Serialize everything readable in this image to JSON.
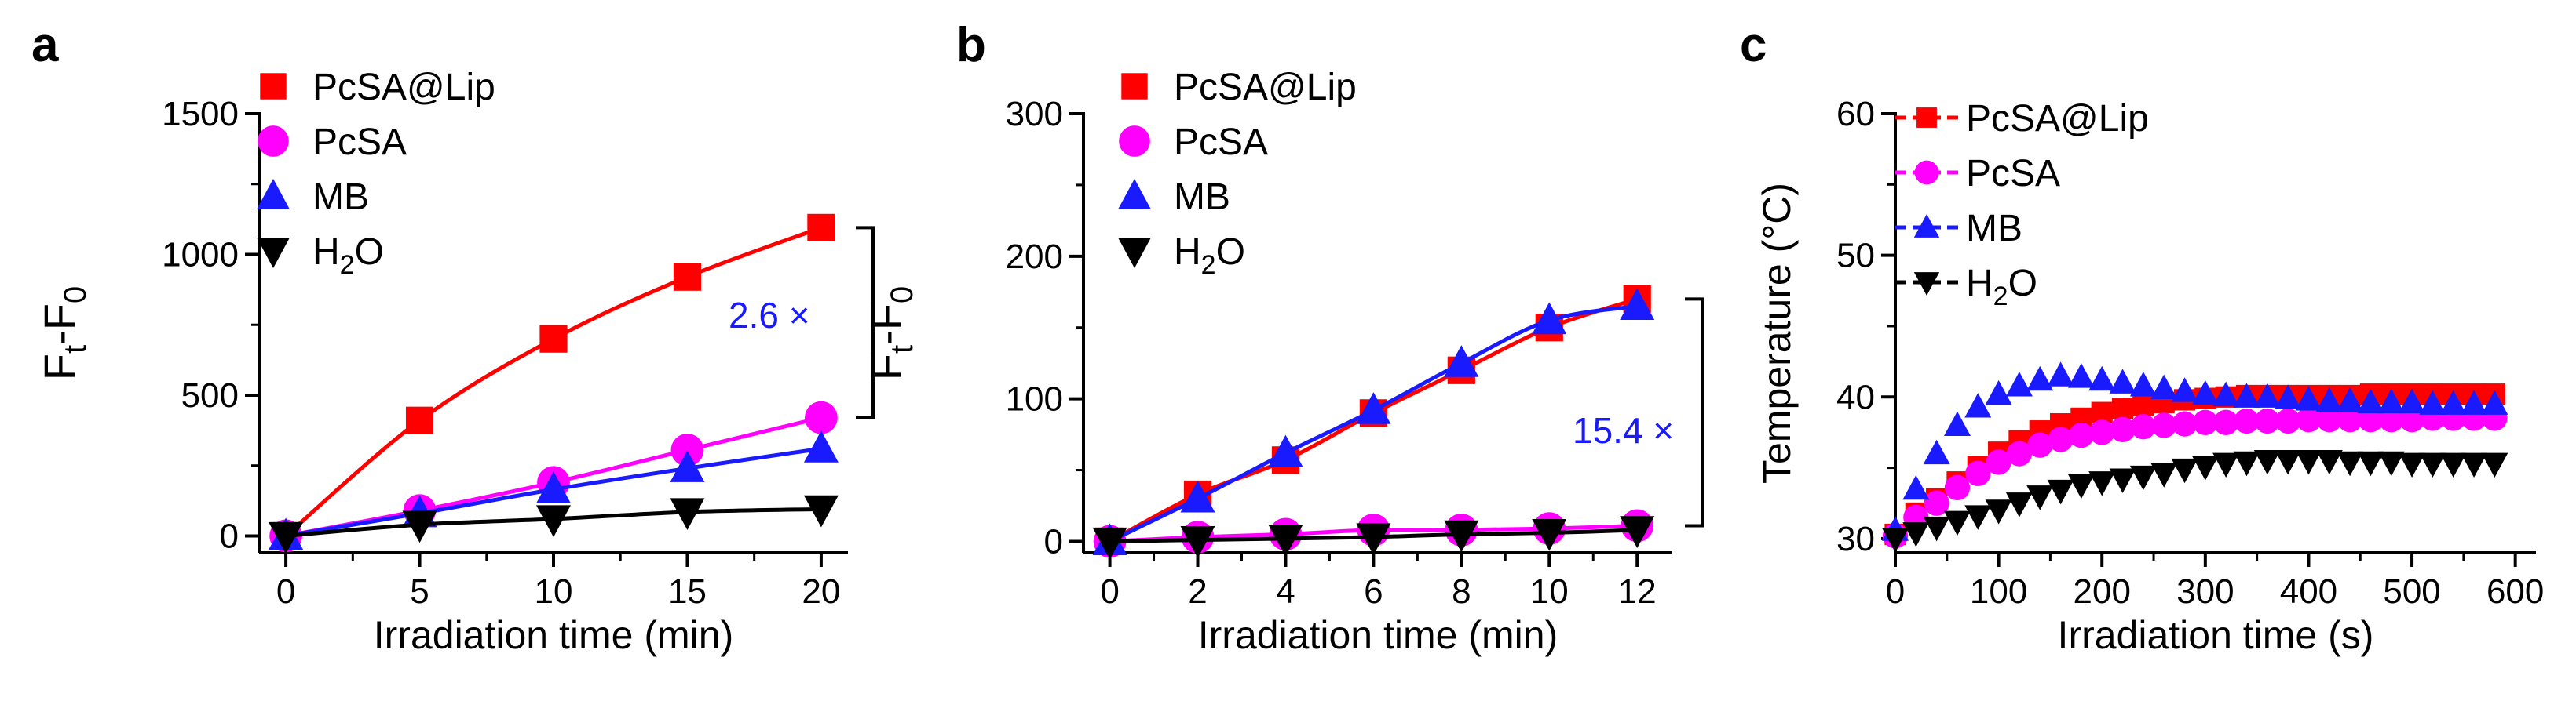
{
  "colors": {
    "PcSA@Lip": "#ff0000",
    "PcSA": "#ff00ff",
    "MB": "#1a1aff",
    "H2O": "#000000",
    "annotation": "#1a1aff"
  },
  "chart_data": [
    {
      "panel": "a",
      "type": "line",
      "xlabel": "Irradiation time (min)",
      "ylabel": "Ft-F0",
      "xlim": [
        -1,
        21
      ],
      "ylim": [
        -60,
        1500
      ],
      "xticks": [
        0,
        5,
        10,
        15,
        20
      ],
      "yticks": [
        0,
        500,
        1000,
        1500
      ],
      "x": [
        0,
        5,
        10,
        15,
        20
      ],
      "series": [
        {
          "name": "PcSA@Lip",
          "label_main": "PcSA@Lip",
          "label_sub": "",
          "label_tail": "",
          "marker": "square",
          "values": [
            0,
            410,
            700,
            920,
            1095
          ]
        },
        {
          "name": "PcSA",
          "label_main": "PcSA",
          "label_sub": "",
          "label_tail": "",
          "marker": "circle",
          "values": [
            0,
            90,
            190,
            305,
            420
          ]
        },
        {
          "name": "MB",
          "label_main": "MB",
          "label_sub": "",
          "label_tail": "",
          "marker": "triangle-up",
          "values": [
            0,
            80,
            165,
            240,
            310
          ]
        },
        {
          "name": "H2O",
          "label_main": "H",
          "label_sub": "2",
          "label_tail": "O",
          "marker": "triangle-down",
          "values": [
            0,
            40,
            60,
            85,
            95
          ]
        }
      ],
      "annotation": {
        "text": "2.6 ×",
        "from_value": 1095,
        "to_value": 420
      }
    },
    {
      "panel": "b",
      "type": "line",
      "xlabel": "Irradiation time (min)",
      "ylabel": "Ft-F0",
      "xlim": [
        -0.6,
        12.8
      ],
      "ylim": [
        -8,
        300
      ],
      "xticks": [
        0,
        2,
        4,
        6,
        8,
        10,
        12
      ],
      "yticks": [
        0,
        100,
        200,
        300
      ],
      "x": [
        0,
        2,
        4,
        6,
        8,
        10,
        12
      ],
      "series": [
        {
          "name": "PcSA@Lip",
          "label_main": "PcSA@Lip",
          "label_sub": "",
          "label_tail": "",
          "marker": "square",
          "values": [
            0,
            33,
            57,
            90,
            120,
            150,
            170
          ]
        },
        {
          "name": "PcSA",
          "label_main": "PcSA",
          "label_sub": "",
          "label_tail": "",
          "marker": "circle",
          "values": [
            0,
            3,
            5,
            8,
            8,
            9,
            11
          ]
        },
        {
          "name": "MB",
          "label_main": "MB",
          "label_sub": "",
          "label_tail": "",
          "marker": "triangle-up",
          "values": [
            0,
            30,
            62,
            92,
            125,
            155,
            165
          ]
        },
        {
          "name": "H2O",
          "label_main": "H",
          "label_sub": "2",
          "label_tail": "O",
          "marker": "triangle-down",
          "values": [
            0,
            1,
            2,
            3,
            5,
            6,
            8
          ]
        }
      ],
      "annotation": {
        "text": "15.4 ×",
        "from_value": 170,
        "to_value": 11
      }
    },
    {
      "panel": "c",
      "type": "scatter",
      "xlabel": "Irradiation time (s)",
      "ylabel": "Temperature (°C)",
      "xlim": [
        0,
        620
      ],
      "ylim": [
        29,
        60
      ],
      "xticks": [
        0,
        100,
        200,
        300,
        400,
        500,
        600
      ],
      "yticks": [
        30,
        40,
        50,
        60
      ],
      "x": [
        0,
        20,
        40,
        60,
        80,
        100,
        120,
        140,
        160,
        180,
        200,
        220,
        240,
        260,
        280,
        300,
        320,
        340,
        360,
        380,
        400,
        420,
        440,
        460,
        480,
        500,
        520,
        540,
        560,
        580
      ],
      "series": [
        {
          "name": "PcSA@Lip",
          "label_main": "PcSA@Lip",
          "label_sub": "",
          "label_tail": "",
          "marker": "square",
          "values": [
            30.3,
            31.8,
            32.8,
            34.0,
            35.1,
            36.1,
            36.9,
            37.6,
            38.1,
            38.5,
            38.9,
            39.2,
            39.4,
            39.6,
            39.8,
            39.9,
            40.0,
            40.1,
            40.1,
            40.1,
            40.1,
            40.1,
            40.1,
            40.2,
            40.2,
            40.2,
            40.2,
            40.2,
            40.2,
            40.2
          ]
        },
        {
          "name": "PcSA",
          "label_main": "PcSA",
          "label_sub": "",
          "label_tail": "",
          "marker": "circle",
          "values": [
            30.2,
            31.5,
            32.5,
            33.6,
            34.6,
            35.4,
            36.0,
            36.6,
            37.0,
            37.3,
            37.5,
            37.7,
            37.9,
            38.0,
            38.1,
            38.2,
            38.2,
            38.3,
            38.3,
            38.3,
            38.4,
            38.4,
            38.4,
            38.4,
            38.4,
            38.4,
            38.5,
            38.5,
            38.5,
            38.5
          ]
        },
        {
          "name": "MB",
          "label_main": "MB",
          "label_sub": "",
          "label_tail": "",
          "marker": "triangle-up",
          "values": [
            30.6,
            33.5,
            36.0,
            38.0,
            39.3,
            40.2,
            40.8,
            41.2,
            41.5,
            41.4,
            41.2,
            41.0,
            40.8,
            40.6,
            40.4,
            40.2,
            40.1,
            40.0,
            40.0,
            39.9,
            39.8,
            39.7,
            39.7,
            39.6,
            39.6,
            39.6,
            39.5,
            39.5,
            39.5,
            39.5
          ]
        },
        {
          "name": "H2O",
          "label_main": "H",
          "label_sub": "2",
          "label_tail": "O",
          "marker": "triangle-down",
          "values": [
            30.0,
            30.4,
            30.8,
            31.2,
            31.6,
            32.0,
            32.5,
            33.0,
            33.4,
            33.8,
            34.0,
            34.2,
            34.4,
            34.6,
            34.9,
            35.1,
            35.3,
            35.4,
            35.5,
            35.5,
            35.5,
            35.5,
            35.4,
            35.4,
            35.4,
            35.3,
            35.3,
            35.3,
            35.3,
            35.3
          ]
        }
      ]
    }
  ]
}
